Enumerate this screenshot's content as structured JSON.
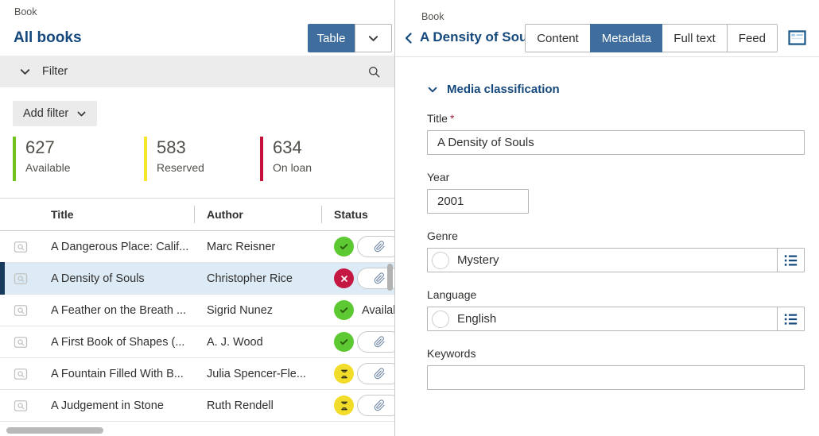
{
  "left_panel": {
    "breadcrumb": "Book",
    "page_title": "All books",
    "view_button_label": "Table",
    "filter_label": "Filter",
    "add_filter_label": "Add filter",
    "stats": [
      {
        "value": "627",
        "label": "Available",
        "bar_color": "#70c31d"
      },
      {
        "value": "583",
        "label": "Reserved",
        "bar_color": "#f7e52a"
      },
      {
        "value": "634",
        "label": "On loan",
        "bar_color": "#c2123a"
      }
    ],
    "table": {
      "columns": [
        "Title",
        "Author",
        "Status"
      ],
      "rows": [
        {
          "title": "A Dangerous Place: Calif...",
          "author": "Marc Reisner",
          "status": "available",
          "status_text": "",
          "attachment": true,
          "selected": false
        },
        {
          "title": "A Density of Souls",
          "author": "Christopher Rice",
          "status": "unavailable",
          "status_text": "",
          "attachment": true,
          "selected": true
        },
        {
          "title": "A Feather on the Breath ...",
          "author": "Sigrid Nunez",
          "status": "available",
          "status_text": "Available",
          "attachment": false,
          "selected": false
        },
        {
          "title": "A First Book of Shapes (...",
          "author": "A. J. Wood",
          "status": "available",
          "status_text": "",
          "attachment": true,
          "selected": false
        },
        {
          "title": "A Fountain Filled With B...",
          "author": "Julia Spencer-Fle...",
          "status": "reserved",
          "status_text": "",
          "attachment": true,
          "selected": false
        },
        {
          "title": "A Judgement in Stone",
          "author": "Ruth Rendell",
          "status": "reserved",
          "status_text": "",
          "attachment": true,
          "selected": false
        }
      ]
    }
  },
  "right_panel": {
    "breadcrumb": "Book",
    "title": "A Density of Souls",
    "tabs": [
      {
        "label": "Content",
        "active": false
      },
      {
        "label": "Metadata",
        "active": true
      },
      {
        "label": "Full text",
        "active": false
      },
      {
        "label": "Feed",
        "active": false
      }
    ],
    "section_title": "Media classification",
    "fields": {
      "title": {
        "label": "Title",
        "required": "*",
        "value": "A Density of Souls"
      },
      "year": {
        "label": "Year",
        "value": "2001"
      },
      "genre": {
        "label": "Genre",
        "value": "Mystery"
      },
      "language": {
        "label": "Language",
        "value": "English"
      },
      "keywords": {
        "label": "Keywords",
        "value": "",
        "placeholder": ""
      }
    }
  },
  "colors": {
    "accent_blue": "#3e6d9e",
    "brand_dark_blue": "#15497d",
    "status_available": "#5cc832",
    "status_reserved": "#f2dc2a",
    "status_unavailable": "#c41843",
    "selected_row_bg": "#dcebf5"
  }
}
